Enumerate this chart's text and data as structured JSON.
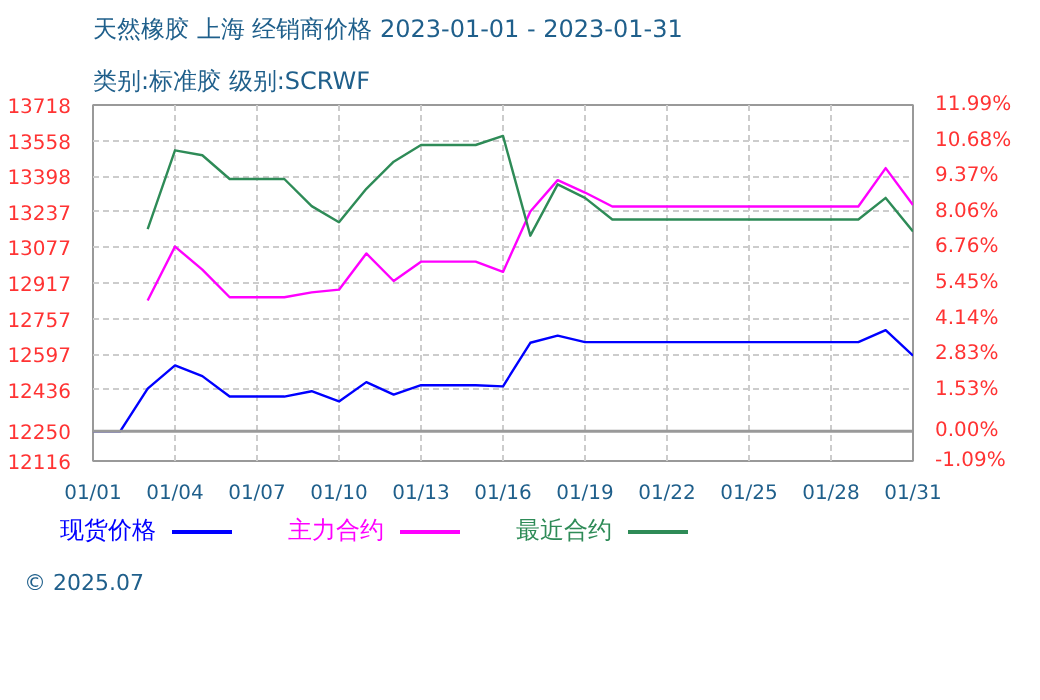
{
  "chart_data": {
    "type": "line",
    "title": "天然橡胶 上海 经销商价格 2023-01-01 - 2023-01-31",
    "subtitle": "类别:标准胶 级别:SCRWF",
    "x": [
      "2023-01-01",
      "2023-01-02",
      "2023-01-03",
      "2023-01-04",
      "2023-01-05",
      "2023-01-06",
      "2023-01-07",
      "2023-01-08",
      "2023-01-09",
      "2023-01-10",
      "2023-01-11",
      "2023-01-12",
      "2023-01-13",
      "2023-01-14",
      "2023-01-15",
      "2023-01-16",
      "2023-01-17",
      "2023-01-18",
      "2023-01-19",
      "2023-01-20",
      "2023-01-21",
      "2023-01-22",
      "2023-01-23",
      "2023-01-24",
      "2023-01-25",
      "2023-01-26",
      "2023-01-27",
      "2023-01-28",
      "2023-01-29",
      "2023-01-30",
      "2023-01-31"
    ],
    "series": [
      {
        "name": "现货价格",
        "color": "#0000ff",
        "values": [
          12250,
          12250,
          12442,
          12546,
          12498,
          12406,
          12406,
          12406,
          12430,
          12384,
          12471,
          12415,
          12457,
          12457,
          12457,
          12452,
          12648,
          12680,
          12651,
          12651,
          12651,
          12651,
          12651,
          12651,
          12651,
          12651,
          12651,
          12651,
          12651,
          12705,
          12590
        ]
      },
      {
        "name": "主力合约",
        "color": "#ff00ff",
        "values": [
          null,
          null,
          12838,
          13081,
          12977,
          12853,
          12853,
          12853,
          12875,
          12887,
          13050,
          12926,
          13013,
          13013,
          13013,
          12967,
          13239,
          13380,
          13324,
          13261,
          13261,
          13261,
          13261,
          13261,
          13261,
          13261,
          13261,
          13261,
          13261,
          13434,
          13268
        ]
      },
      {
        "name": "最近合约",
        "color": "#2e8b57",
        "values": [
          null,
          null,
          13159,
          13514,
          13492,
          13385,
          13385,
          13385,
          13263,
          13190,
          13341,
          13463,
          13538,
          13538,
          13538,
          13579,
          13130,
          13361,
          13300,
          13203,
          13203,
          13203,
          13203,
          13203,
          13203,
          13203,
          13203,
          13203,
          13203,
          13300,
          13149
        ]
      }
    ],
    "xlim": [
      "2023-01-01",
      "2023-01-31"
    ],
    "xticks": [
      {
        "value": "2023-01-01",
        "label": "01/01"
      },
      {
        "value": "2023-01-04",
        "label": "01/04"
      },
      {
        "value": "2023-01-07",
        "label": "01/07"
      },
      {
        "value": "2023-01-10",
        "label": "01/10"
      },
      {
        "value": "2023-01-13",
        "label": "01/13"
      },
      {
        "value": "2023-01-16",
        "label": "01/16"
      },
      {
        "value": "2023-01-19",
        "label": "01/19"
      },
      {
        "value": "2023-01-22",
        "label": "01/22"
      },
      {
        "value": "2023-01-25",
        "label": "01/25"
      },
      {
        "value": "2023-01-28",
        "label": "01/28"
      },
      {
        "value": "2023-01-31",
        "label": "01/31"
      }
    ],
    "ylim": [
      12116,
      13718
    ],
    "yticks": [
      12116,
      12250,
      12436,
      12597,
      12757,
      12917,
      13077,
      13237,
      13398,
      13558,
      13718
    ],
    "y2lim": [
      -1.09,
      11.99
    ],
    "y2ticks": [
      {
        "value": -1.09,
        "label": "-1.09%"
      },
      {
        "value": 0,
        "label": "0.00%"
      },
      {
        "value": 1.53,
        "label": "1.53%"
      },
      {
        "value": 2.83,
        "label": "2.83%"
      },
      {
        "value": 4.14,
        "label": "4.14%"
      },
      {
        "value": 5.45,
        "label": "5.45%"
      },
      {
        "value": 6.76,
        "label": "6.76%"
      },
      {
        "value": 8.06,
        "label": "8.06%"
      },
      {
        "value": 9.37,
        "label": "9.37%"
      },
      {
        "value": 10.68,
        "label": "10.68%"
      },
      {
        "value": 11.99,
        "label": "11.99%"
      }
    ],
    "ref_lines": [
      {
        "axis": "y",
        "value": 12250,
        "label": null,
        "color": "#999999"
      }
    ],
    "grid": true,
    "legend": "bottom",
    "marker": "none",
    "line_style": "solid",
    "annotations": [
      "© 2025.07"
    ]
  }
}
